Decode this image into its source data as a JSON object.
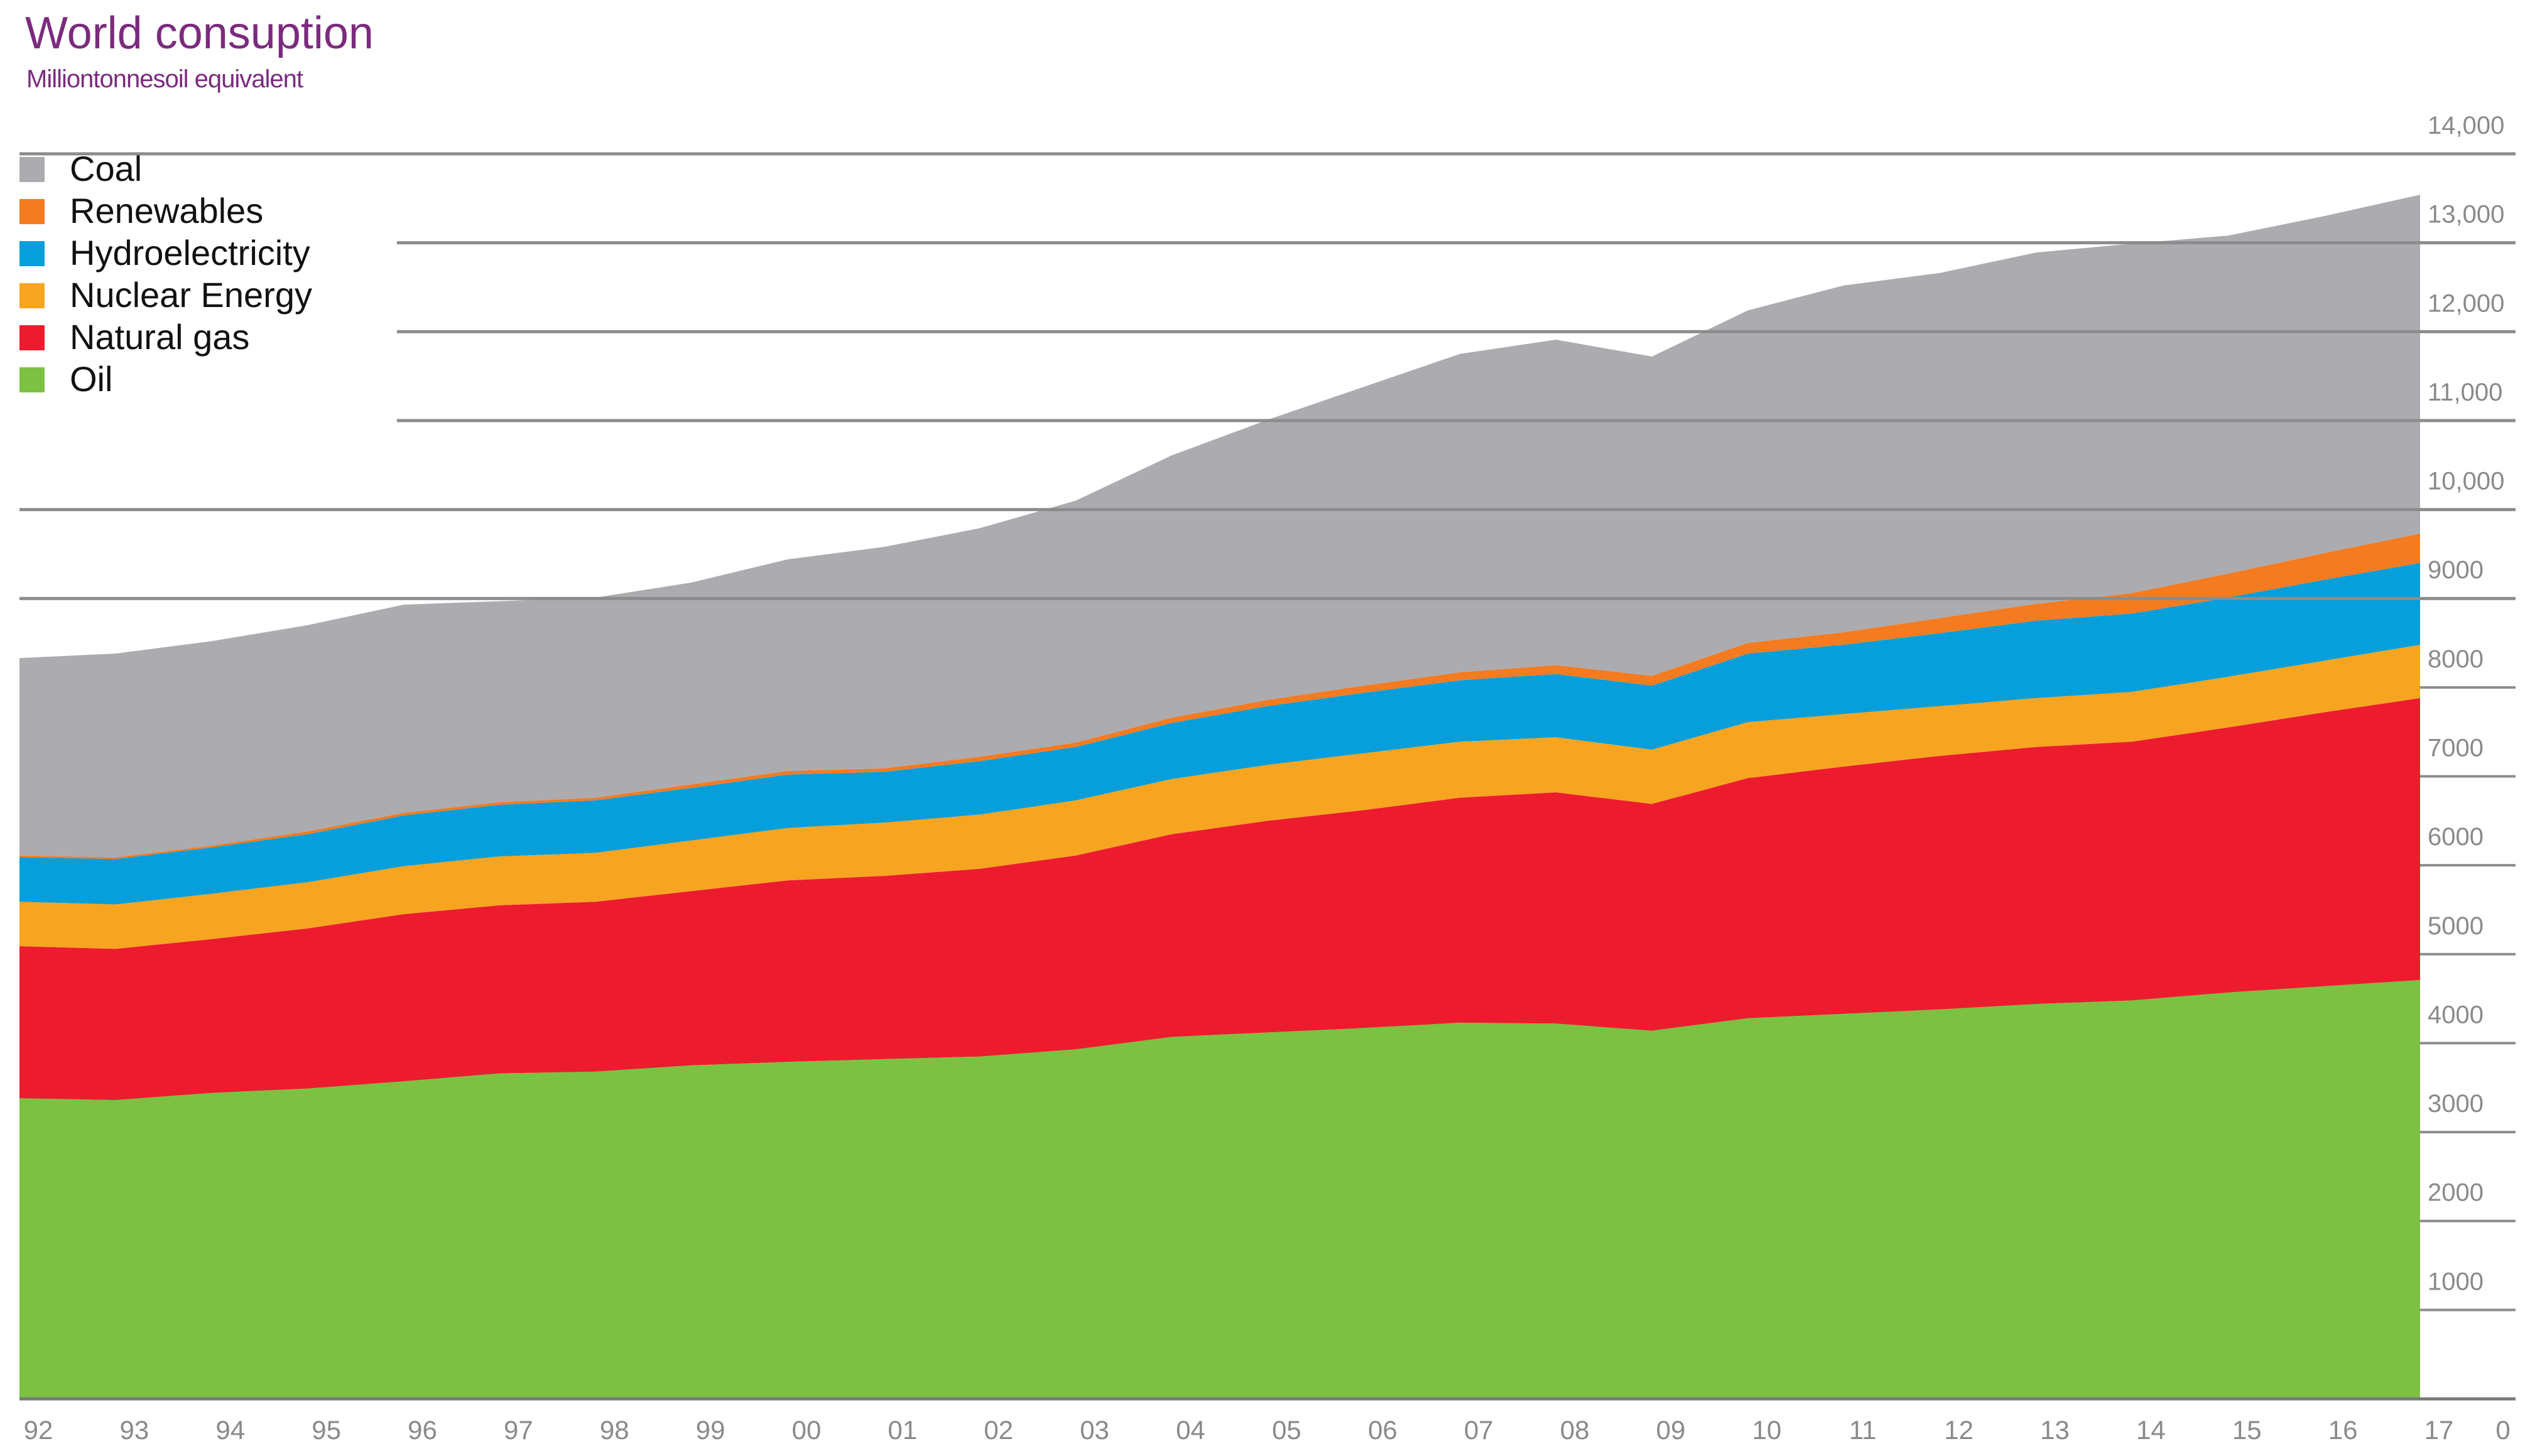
{
  "chart_data": {
    "type": "area",
    "stacked": true,
    "title": "World consuption",
    "subtitle": "Milliontonnesoil equivalent",
    "xlabel": "",
    "ylabel": "",
    "x": [
      "92",
      "93",
      "94",
      "95",
      "96",
      "97",
      "98",
      "99",
      "00",
      "01",
      "02",
      "03",
      "04",
      "05",
      "06",
      "07",
      "08",
      "09",
      "10",
      "11",
      "12",
      "13",
      "14",
      "15",
      "16",
      "17"
    ],
    "x_end_label": "0",
    "ylim": [
      0,
      14000
    ],
    "yticks": [
      {
        "value": 1000,
        "label": "1000"
      },
      {
        "value": 2000,
        "label": "2000"
      },
      {
        "value": 3000,
        "label": "3000"
      },
      {
        "value": 4000,
        "label": "4000"
      },
      {
        "value": 5000,
        "label": "5000"
      },
      {
        "value": 6000,
        "label": "6000"
      },
      {
        "value": 7000,
        "label": "7000"
      },
      {
        "value": 8000,
        "label": "8000"
      },
      {
        "value": 9000,
        "label": "9000"
      },
      {
        "value": 10000,
        "label": "10,000"
      },
      {
        "value": 11000,
        "label": "11,000"
      },
      {
        "value": 12000,
        "label": "12,000"
      },
      {
        "value": 13000,
        "label": "13,000"
      },
      {
        "value": 14000,
        "label": "14,000"
      }
    ],
    "y_axis_position": "right",
    "grid": "partial horizontal lines at 10000-14000",
    "legend_position": "top-left",
    "series": [
      {
        "name": "Oil",
        "color": "#7cc142",
        "values": [
          3380,
          3360,
          3440,
          3490,
          3570,
          3660,
          3680,
          3750,
          3790,
          3820,
          3850,
          3930,
          4070,
          4120,
          4170,
          4230,
          4220,
          4140,
          4280,
          4330,
          4380,
          4440,
          4480,
          4570,
          4640,
          4710
        ]
      },
      {
        "name": "Natural gas",
        "color": "#ec1c2e",
        "values": [
          1710,
          1700,
          1730,
          1800,
          1880,
          1890,
          1910,
          1960,
          2040,
          2060,
          2110,
          2180,
          2280,
          2380,
          2450,
          2530,
          2600,
          2550,
          2700,
          2780,
          2850,
          2890,
          2910,
          2980,
          3080,
          3170
        ]
      },
      {
        "name": "Nuclear Energy",
        "color": "#f7a520",
        "values": [
          500,
          500,
          510,
          520,
          540,
          550,
          550,
          570,
          590,
          600,
          610,
          620,
          620,
          630,
          640,
          630,
          620,
          610,
          630,
          590,
          560,
          550,
          560,
          570,
          580,
          600
        ]
      },
      {
        "name": "Hydroelectricity",
        "color": "#069edb",
        "values": [
          500,
          510,
          520,
          540,
          570,
          580,
          590,
          590,
          600,
          570,
          600,
          600,
          630,
          660,
          680,
          690,
          710,
          720,
          770,
          780,
          820,
          870,
          880,
          890,
          910,
          920
        ]
      },
      {
        "name": "Renewables",
        "color": "#f47b20",
        "values": [
          20,
          20,
          20,
          30,
          30,
          30,
          30,
          40,
          40,
          40,
          50,
          50,
          60,
          70,
          80,
          90,
          100,
          110,
          120,
          140,
          170,
          190,
          230,
          270,
          300,
          330
        ]
      },
      {
        "name": "Coal",
        "color": "#acabaf",
        "values": [
          2220,
          2290,
          2300,
          2320,
          2340,
          2260,
          2250,
          2270,
          2380,
          2490,
          2570,
          2720,
          2950,
          3150,
          3360,
          3580,
          3660,
          3590,
          3740,
          3900,
          3880,
          3950,
          3930,
          3800,
          3790,
          3810
        ]
      }
    ]
  }
}
